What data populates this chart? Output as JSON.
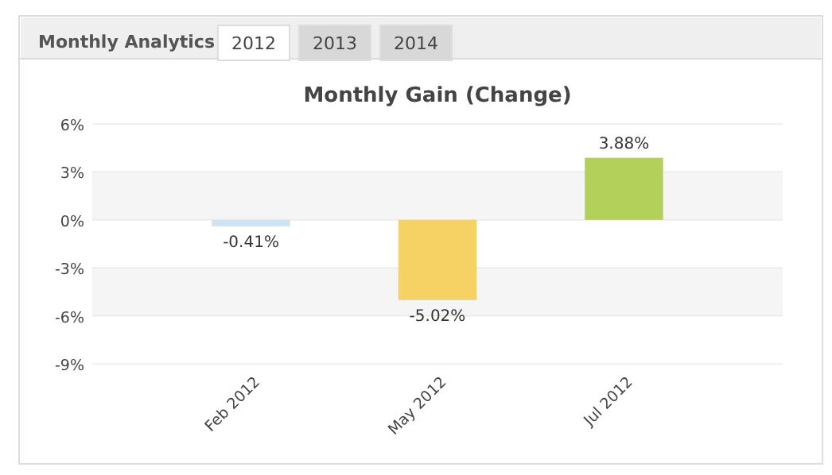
{
  "chart_data": {
    "type": "bar",
    "title": "Monthly Gain (Change)",
    "annotations": [
      "Monthly Analytics",
      "2012",
      "2013",
      "2014"
    ],
    "categories": [
      "Feb 2012",
      "May 2012",
      "Jul 2012"
    ],
    "values": [
      -0.41,
      -5.02,
      3.88
    ],
    "colors": [
      "#cfe3f2",
      "#f6d264",
      "#b3d05a"
    ],
    "value_labels": [
      "-0.41%",
      "-5.02%",
      "3.88%"
    ],
    "ylim": [
      -9,
      6
    ],
    "yticks": [
      {
        "value": 6,
        "label": "6%"
      },
      {
        "value": 3,
        "label": "3%"
      },
      {
        "value": 0,
        "label": "0%"
      },
      {
        "value": -3,
        "label": "-3%"
      },
      {
        "value": -6,
        "label": "-6%"
      },
      {
        "value": -9,
        "label": "-9%"
      }
    ],
    "grid": "y"
  }
}
